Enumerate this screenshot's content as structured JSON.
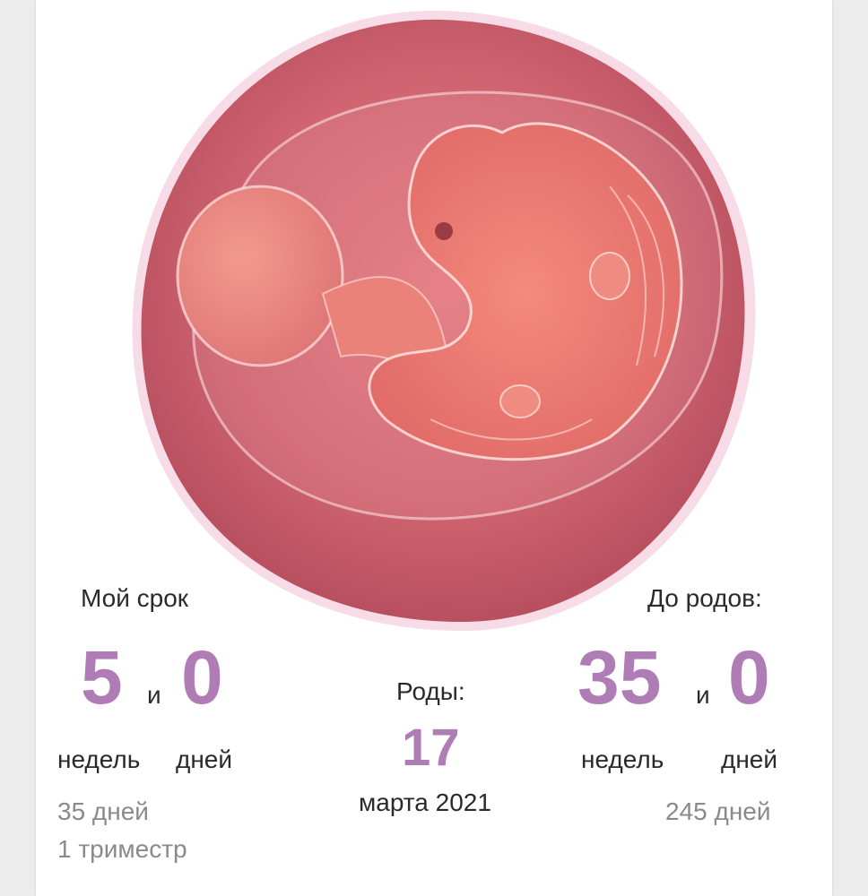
{
  "left": {
    "title": "Мой срок",
    "weeks": "5",
    "and": "и",
    "days": "0",
    "weeks_label": "недель",
    "days_label": "дней",
    "total_days": "35 дней",
    "trimester": "1 триместр"
  },
  "center": {
    "title": "Роды:",
    "day": "17",
    "month_year": "марта 2021"
  },
  "right": {
    "title": "До родов:",
    "weeks": "35",
    "and": "и",
    "days": "0",
    "weeks_label": "недель",
    "days_label": "дней",
    "total_days": "245 дней"
  },
  "colors": {
    "accent": "#b07cb6",
    "embryo_bg": "#c45a66",
    "embryo_border": "#f7dbe6"
  },
  "image": {
    "icon": "embryo-illustration"
  }
}
